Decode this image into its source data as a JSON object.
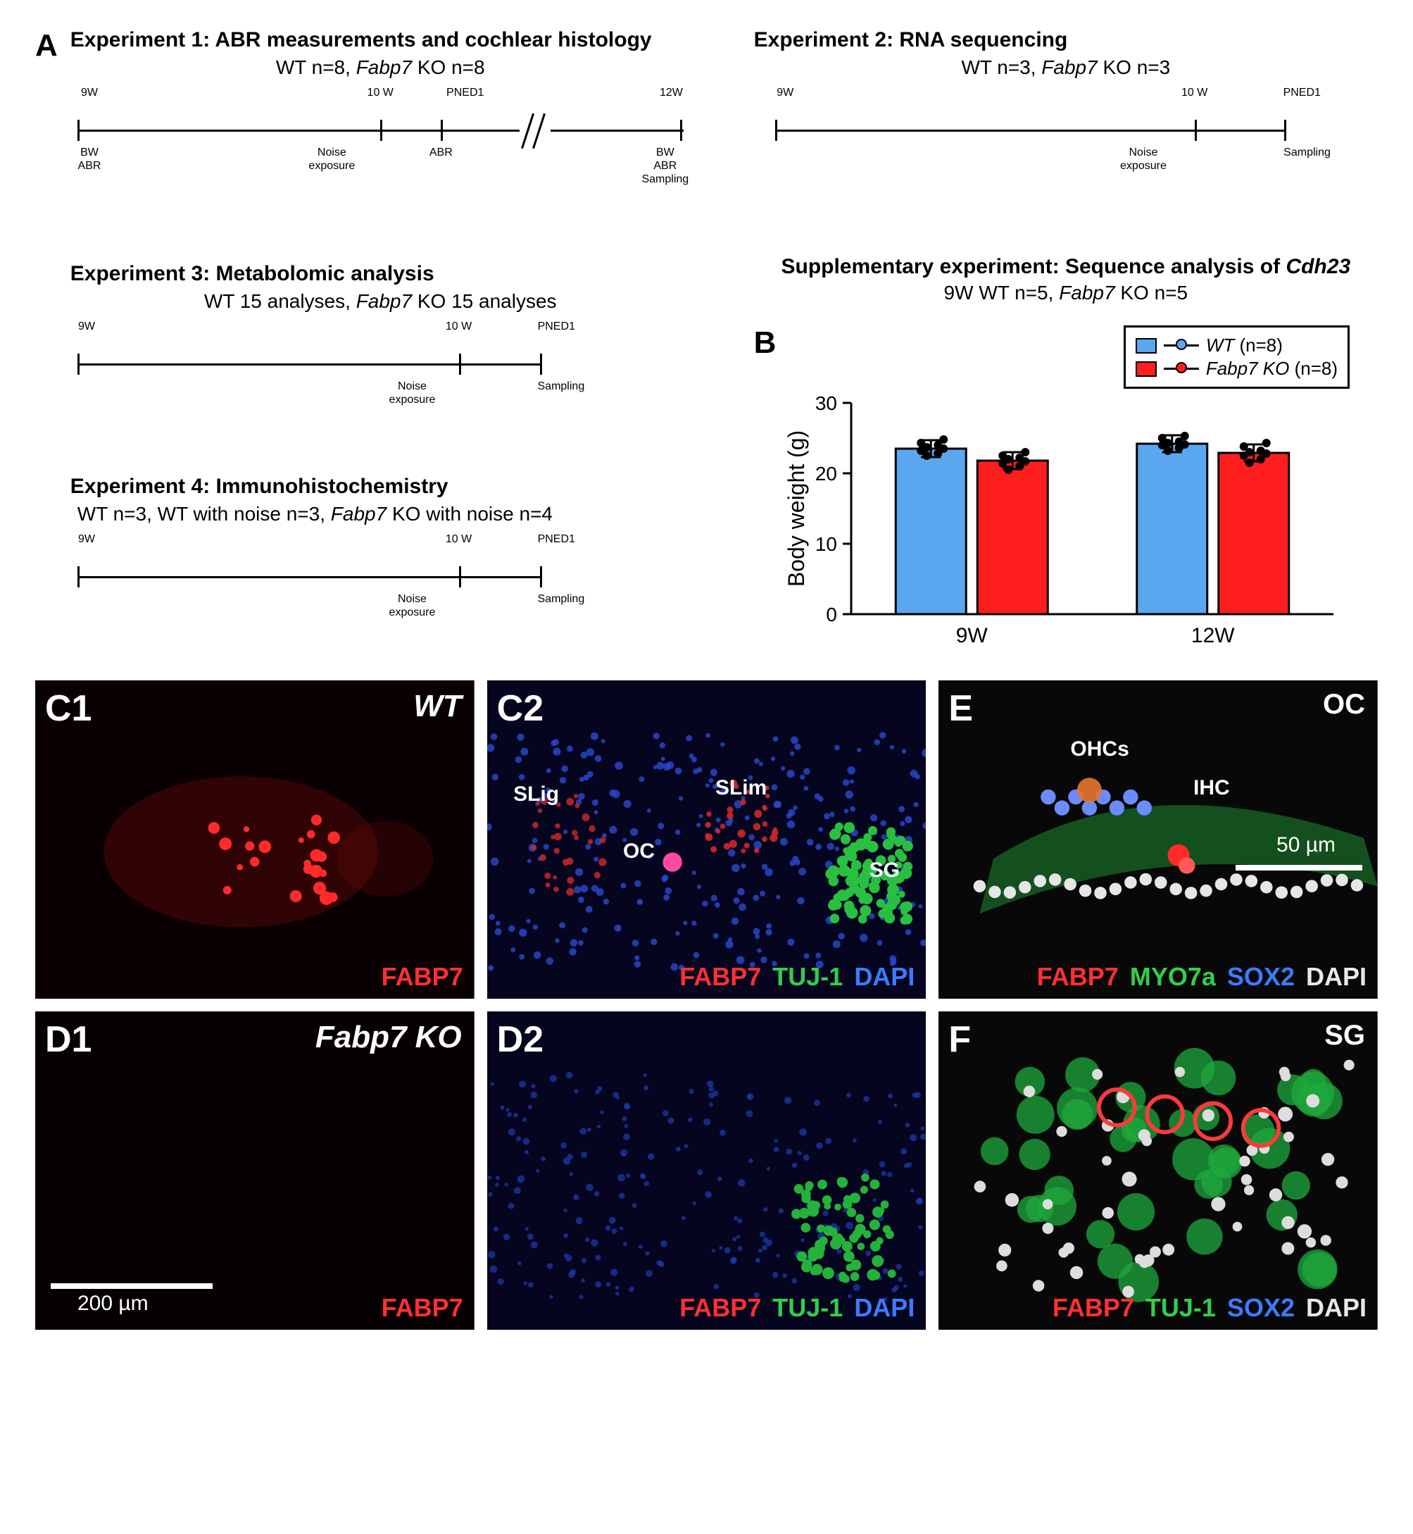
{
  "panelA": {
    "letter": "A",
    "exp1": {
      "title": "Experiment 1: ABR measurements and cochlear histology",
      "sub": "WT n=8, <i>Fabp7</i> KO n=8",
      "top": {
        "t9": "9W",
        "t10": "10 W",
        "pned": "PNED1",
        "t12": "12W"
      },
      "bottom": {
        "bw": "BW\nABR",
        "noise": "Noise\nexposure",
        "abr": "ABR",
        "samp": "BW\nABR\nSampling"
      }
    },
    "exp2": {
      "title": "Experiment 2: RNA sequencing",
      "sub": "WT n=3, <i>Fabp7</i> KO n=3",
      "top": {
        "t9": "9W",
        "t10": "10 W",
        "pned": "PNED1"
      },
      "bottom": {
        "noise": "Noise\nexposure",
        "samp": "Sampling"
      }
    },
    "exp3": {
      "title": "Experiment 3: Metabolomic analysis",
      "sub": "WT 15 analyses, <i>Fabp7</i> KO 15 analyses",
      "top": {
        "t9": "9W",
        "t10": "10 W",
        "pned": "PNED1"
      },
      "bottom": {
        "noise": "Noise\nexposure",
        "samp": "Sampling"
      }
    },
    "exp4": {
      "title": "Experiment 4: Immunohistochemistry",
      "sub": "WT n=3, WT with noise n=3, <i>Fabp7</i> KO with noise n=4",
      "top": {
        "t9": "9W",
        "t10": "10 W",
        "pned": "PNED1"
      },
      "bottom": {
        "noise": "Noise\nexposure",
        "samp": "Sampling"
      }
    },
    "supp": {
      "title": "Supplementary experiment: Sequence analysis of <i>Cdh23</i>",
      "sub": "9W WT n=5, <i>Fabp7</i> KO n=5"
    }
  },
  "panelB": {
    "letter": "B",
    "ylabel": "Body weight (g)",
    "ylim": [
      0,
      30
    ],
    "yticks": [
      0,
      10,
      20,
      30
    ],
    "categories": [
      "9W",
      "12W"
    ],
    "series": [
      {
        "name": "WT",
        "n": "(n=8)",
        "color": "#5aa7ef",
        "values": [
          23.5,
          24.2
        ],
        "points9": [
          22.5,
          22.8,
          23.2,
          23.5,
          23.7,
          24.0,
          24.3,
          24.8
        ],
        "points12": [
          23.2,
          23.6,
          24.0,
          24.1,
          24.3,
          24.5,
          25.0,
          25.3
        ]
      },
      {
        "name": "Fabp7 KO",
        "n": "(n=8)",
        "color": "#ff1e1e",
        "values": [
          21.8,
          22.9
        ],
        "points9": [
          20.5,
          21.0,
          21.4,
          21.7,
          22.0,
          22.2,
          22.5,
          23.0
        ],
        "points12": [
          21.5,
          22.0,
          22.5,
          22.8,
          23.0,
          23.2,
          23.8,
          24.3
        ]
      }
    ],
    "title_fontsize": 30,
    "tick_fontsize": 28,
    "bar_border": "#000000",
    "bar_width": 0.7,
    "background_color": "#ffffff"
  },
  "micrographs": {
    "C1": {
      "genotype": "WT",
      "stains": [
        {
          "t": "FABP7",
          "c": "#ff3030"
        }
      ],
      "bg": "#0a0003"
    },
    "C2": {
      "annos": [
        "SLig",
        "SLim",
        "OC",
        "SG"
      ],
      "stains": [
        {
          "t": "FABP7",
          "c": "#ff3030"
        },
        {
          "t": "TUJ-1",
          "c": "#2fd04a"
        },
        {
          "t": "DAPI",
          "c": "#3a7cff"
        }
      ],
      "bg": "#050520"
    },
    "D1": {
      "genotype": "Fabp7 KO",
      "scalebar": "200 µm",
      "stains": [
        {
          "t": "FABP7",
          "c": "#ff3030"
        }
      ],
      "bg": "#070002"
    },
    "D2": {
      "stains": [
        {
          "t": "FABP7",
          "c": "#ff3030"
        },
        {
          "t": "TUJ-1",
          "c": "#2fd04a"
        },
        {
          "t": "DAPI",
          "c": "#3a7cff"
        }
      ],
      "bg": "#050520"
    },
    "E": {
      "region": "OC",
      "annos": [
        "OHCs",
        "IHC"
      ],
      "scalebar": "50 µm",
      "stains": [
        {
          "t": "FABP7",
          "c": "#ff3030"
        },
        {
          "t": "MYO7a",
          "c": "#2fd04a"
        },
        {
          "t": "SOX2",
          "c": "#3a7cff"
        },
        {
          "t": "DAPI",
          "c": "#e8e8e8"
        }
      ],
      "bg": "#080808"
    },
    "F": {
      "region": "SG",
      "stains": [
        {
          "t": "FABP7",
          "c": "#ff3030"
        },
        {
          "t": "TUJ-1",
          "c": "#2fd04a"
        },
        {
          "t": "SOX2",
          "c": "#3a7cff"
        },
        {
          "t": "DAPI",
          "c": "#e8e8e8"
        }
      ],
      "bg": "#080808"
    }
  },
  "colors": {
    "fabp7": "#ff3030",
    "tuj1": "#2fd04a",
    "dapi_blue": "#3a7cff",
    "dapi_white": "#e8e8e8",
    "myo7a": "#2fd04a",
    "sox2": "#3a7cff"
  }
}
